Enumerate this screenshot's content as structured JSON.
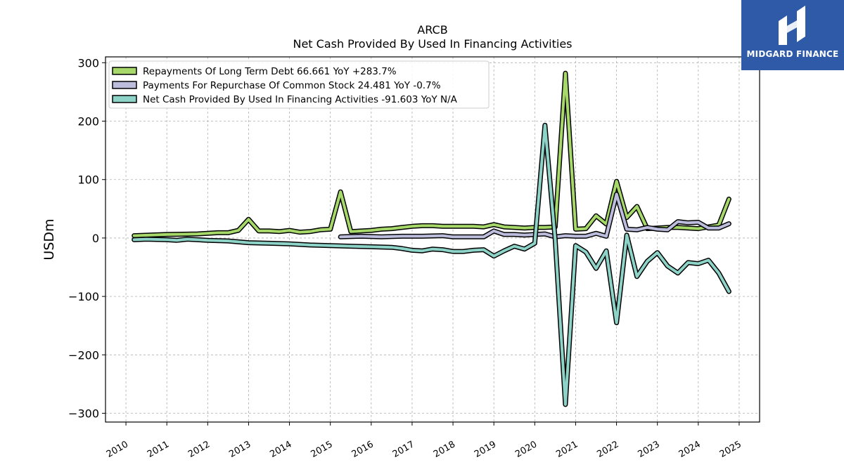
{
  "logo": {
    "text": "MIDGARD FINANCE",
    "background": "#2e5aa8"
  },
  "chart_data": {
    "type": "line",
    "title": "ARCB",
    "subtitle": "Net Cash Provided By Used In Financing Activities",
    "ylabel": "USDm",
    "xlabel": "",
    "xlim": [
      2009.5,
      2025.5
    ],
    "ylim": [
      -315,
      310
    ],
    "yticks": [
      300,
      200,
      100,
      0,
      -100,
      -200,
      -300
    ],
    "ytick_labels": [
      "300",
      "200",
      "100",
      "0",
      "−100",
      "−200",
      "−300"
    ],
    "xticks": [
      2010,
      2011,
      2012,
      2013,
      2014,
      2015,
      2016,
      2017,
      2018,
      2019,
      2020,
      2021,
      2022,
      2023,
      2024,
      2025
    ],
    "xtick_labels": [
      "2010",
      "2011",
      "2012",
      "2013",
      "2014",
      "2015",
      "2016",
      "2017",
      "2018",
      "2019",
      "2020",
      "2021",
      "2022",
      "2023",
      "2024",
      "2025"
    ],
    "grid": true,
    "legend_position": "top-left",
    "series": [
      {
        "name": "Repayments Of Long Term Debt",
        "legend_label": "Repayments Of Long Term Debt  66.661 YoY +283.7%",
        "color": "#a6d96a",
        "points": [
          [
            2010.2,
            4
          ],
          [
            2011.0,
            6
          ],
          [
            2011.75,
            7
          ],
          [
            2012.25,
            9
          ],
          [
            2012.5,
            9
          ],
          [
            2012.75,
            13
          ],
          [
            2013.0,
            32
          ],
          [
            2013.25,
            12
          ],
          [
            2013.5,
            12
          ],
          [
            2013.75,
            11
          ],
          [
            2014.0,
            13
          ],
          [
            2014.25,
            10
          ],
          [
            2014.5,
            11
          ],
          [
            2014.75,
            14
          ],
          [
            2015.0,
            15
          ],
          [
            2015.25,
            79
          ],
          [
            2015.5,
            11
          ],
          [
            2016.0,
            13
          ],
          [
            2016.25,
            15
          ],
          [
            2016.5,
            16
          ],
          [
            2016.75,
            18
          ],
          [
            2017.0,
            20
          ],
          [
            2017.25,
            21
          ],
          [
            2017.5,
            21
          ],
          [
            2017.75,
            20
          ],
          [
            2018.0,
            20
          ],
          [
            2018.25,
            20
          ],
          [
            2018.5,
            20
          ],
          [
            2018.75,
            19
          ],
          [
            2019.0,
            23
          ],
          [
            2019.25,
            19
          ],
          [
            2019.5,
            18
          ],
          [
            2019.75,
            17
          ],
          [
            2020.0,
            18
          ],
          [
            2020.25,
            18
          ],
          [
            2020.5,
            19
          ],
          [
            2020.75,
            282
          ],
          [
            2021.0,
            15
          ],
          [
            2021.25,
            16
          ],
          [
            2021.5,
            38
          ],
          [
            2021.75,
            24
          ],
          [
            2022.0,
            97
          ],
          [
            2022.25,
            35
          ],
          [
            2022.5,
            54
          ],
          [
            2022.75,
            16
          ],
          [
            2023.0,
            17
          ],
          [
            2023.25,
            18
          ],
          [
            2023.5,
            18
          ],
          [
            2023.75,
            17
          ],
          [
            2024.0,
            16
          ],
          [
            2024.25,
            19
          ],
          [
            2024.5,
            22
          ],
          [
            2024.75,
            66.661
          ]
        ]
      },
      {
        "name": "Payments For Repurchase Of Common Stock",
        "legend_label": "Payments For Repurchase Of Common Stock  24.481 YoY -0.7%",
        "color": "#bcbddc",
        "points": [
          [
            2015.25,
            2
          ],
          [
            2015.75,
            3
          ],
          [
            2016.25,
            2
          ],
          [
            2016.75,
            3
          ],
          [
            2017.25,
            3
          ],
          [
            2017.75,
            4
          ],
          [
            2018.0,
            2
          ],
          [
            2018.25,
            2
          ],
          [
            2018.5,
            2
          ],
          [
            2018.75,
            2
          ],
          [
            2019.0,
            12
          ],
          [
            2019.25,
            6
          ],
          [
            2019.5,
            6
          ],
          [
            2019.75,
            5
          ],
          [
            2020.0,
            6
          ],
          [
            2020.25,
            7
          ],
          [
            2020.5,
            2
          ],
          [
            2020.75,
            4
          ],
          [
            2021.0,
            3
          ],
          [
            2021.25,
            3
          ],
          [
            2021.5,
            8
          ],
          [
            2021.75,
            3
          ],
          [
            2022.0,
            75
          ],
          [
            2022.25,
            15
          ],
          [
            2022.5,
            14
          ],
          [
            2022.75,
            18
          ],
          [
            2023.0,
            15
          ],
          [
            2023.25,
            14
          ],
          [
            2023.5,
            28
          ],
          [
            2023.75,
            26
          ],
          [
            2024.0,
            27
          ],
          [
            2024.25,
            17
          ],
          [
            2024.5,
            17
          ],
          [
            2024.75,
            24.481
          ]
        ]
      },
      {
        "name": "Net Cash Provided By Used In Financing Activities",
        "legend_label": "Net Cash Provided By Used In Financing Activities  -91.603 YoY N/A",
        "color": "#8dd3c7",
        "points": [
          [
            2010.2,
            -3
          ],
          [
            2010.5,
            -2
          ],
          [
            2011.0,
            -3
          ],
          [
            2011.25,
            -4
          ],
          [
            2011.5,
            -2
          ],
          [
            2011.75,
            -3
          ],
          [
            2012.0,
            -4
          ],
          [
            2012.5,
            -5
          ],
          [
            2013.0,
            -8
          ],
          [
            2013.5,
            -9
          ],
          [
            2014.0,
            -10
          ],
          [
            2014.5,
            -12
          ],
          [
            2015.0,
            -13
          ],
          [
            2015.5,
            -14
          ],
          [
            2016.0,
            -15
          ],
          [
            2016.5,
            -16
          ],
          [
            2016.75,
            -18
          ],
          [
            2017.0,
            -21
          ],
          [
            2017.25,
            -22
          ],
          [
            2017.5,
            -19
          ],
          [
            2017.75,
            -20
          ],
          [
            2018.0,
            -23
          ],
          [
            2018.25,
            -23
          ],
          [
            2018.5,
            -21
          ],
          [
            2018.75,
            -20
          ],
          [
            2019.0,
            -31
          ],
          [
            2019.25,
            -22
          ],
          [
            2019.5,
            -14
          ],
          [
            2019.75,
            -19
          ],
          [
            2020.0,
            -9
          ],
          [
            2020.25,
            193
          ],
          [
            2020.5,
            -3
          ],
          [
            2020.75,
            -285
          ],
          [
            2021.0,
            -13
          ],
          [
            2021.25,
            -24
          ],
          [
            2021.5,
            -52
          ],
          [
            2021.75,
            -22
          ],
          [
            2022.0,
            -145
          ],
          [
            2022.25,
            5
          ],
          [
            2022.5,
            -66
          ],
          [
            2022.75,
            -40
          ],
          [
            2023.0,
            -25
          ],
          [
            2023.25,
            -48
          ],
          [
            2023.5,
            -60
          ],
          [
            2023.75,
            -42
          ],
          [
            2024.0,
            -44
          ],
          [
            2024.25,
            -38
          ],
          [
            2024.5,
            -60
          ],
          [
            2024.75,
            -91.603
          ]
        ]
      }
    ]
  }
}
